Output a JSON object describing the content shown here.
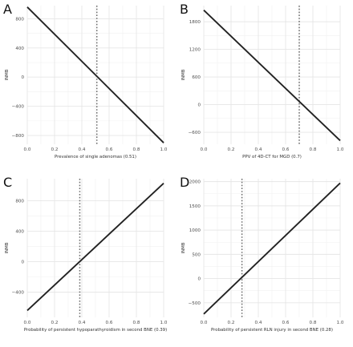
{
  "chart_data": [
    {
      "type": "line",
      "panel_label": "A",
      "xlabel": "Prevalence of single adenomas (0.51)",
      "ylabel": "INMB",
      "xlim": [
        0.0,
        1.0
      ],
      "ylim": [
        -920,
        980
      ],
      "x_ticks": [
        "0.0",
        "0.2",
        "0.4",
        "0.6",
        "0.8",
        "1.0"
      ],
      "y_ticks": [
        -800,
        -400,
        0,
        400,
        800
      ],
      "y_tick_labels": [
        "−800",
        "−400",
        "0",
        "400",
        "800"
      ],
      "grid": true,
      "series": [
        {
          "x": [
            0.0,
            1.0
          ],
          "y": [
            960,
            -900
          ]
        }
      ],
      "reference_x": 0.51
    },
    {
      "type": "line",
      "panel_label": "B",
      "xlabel": "PPV of 4D-CT for MGD  (0.7)",
      "ylabel": "INMB",
      "xlim": [
        0.0,
        1.0
      ],
      "ylim": [
        -860,
        2150
      ],
      "x_ticks": [
        "0.0",
        "0.2",
        "0.4",
        "0.6",
        "0.8",
        "1.0"
      ],
      "y_ticks": [
        -600,
        0,
        600,
        1200,
        1800
      ],
      "y_tick_labels": [
        "−600",
        "0",
        "600",
        "1200",
        "1800"
      ],
      "grid": true,
      "series": [
        {
          "x": [
            0.0,
            1.0
          ],
          "y": [
            2050,
            -780
          ]
        }
      ],
      "reference_x": 0.7
    },
    {
      "type": "line",
      "panel_label": "C",
      "xlabel": "Probability of persistent hypoparathyroidism in second BNE  (0.39)",
      "ylabel": "INMB",
      "xlim": [
        0.0,
        1.0
      ],
      "ylim": [
        -730,
        1090
      ],
      "x_ticks": [
        "0.0",
        "0.2",
        "0.4",
        "0.6",
        "0.8",
        "1.0"
      ],
      "y_ticks": [
        -400,
        0,
        400,
        800
      ],
      "y_tick_labels": [
        "−400",
        "0",
        "400",
        "800"
      ],
      "grid": true,
      "series": [
        {
          "x": [
            0.0,
            1.0
          ],
          "y": [
            -640,
            1030
          ]
        }
      ],
      "reference_x": 0.385
    },
    {
      "type": "line",
      "panel_label": "D",
      "xlabel": "Probability of persistent RLN injury in second BNE (0.28)",
      "ylabel": "INMB",
      "xlim": [
        0.0,
        1.0
      ],
      "ylim": [
        -800,
        2060
      ],
      "x_ticks": [
        "0.0",
        "0.2",
        "0.4",
        "0.6",
        "0.8",
        "1.0"
      ],
      "y_ticks": [
        -500,
        0,
        500,
        1000,
        1500,
        2000
      ],
      "y_tick_labels": [
        "−500",
        "0",
        "500",
        "1000",
        "1500",
        "2000"
      ],
      "grid": true,
      "series": [
        {
          "x": [
            0.0,
            1.0
          ],
          "y": [
            -730,
            1970
          ]
        }
      ],
      "reference_x": 0.28
    }
  ],
  "colors": {
    "line": "#222222",
    "reference": "#6b6b6b",
    "grid": "#e6e6e6"
  }
}
